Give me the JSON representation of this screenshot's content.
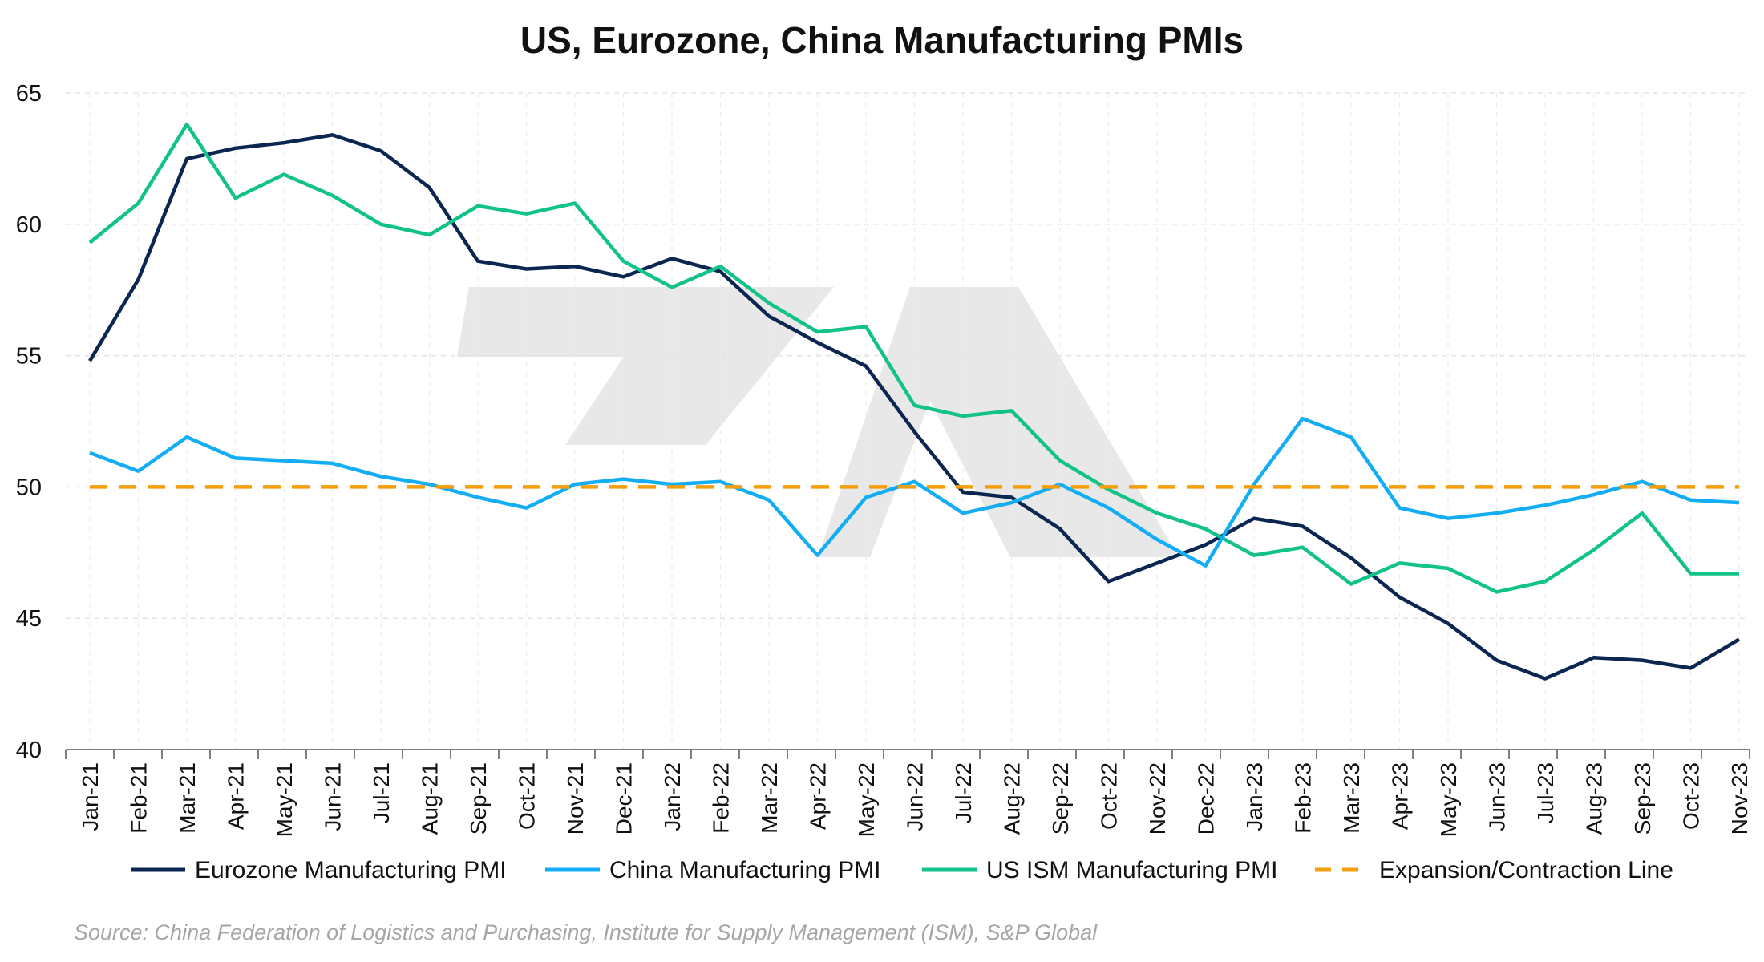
{
  "chart_data": {
    "type": "line",
    "title": "US, Eurozone, China Manufacturing PMIs",
    "xlabel": "",
    "ylabel": "",
    "ylim": [
      40,
      65
    ],
    "yticks": [
      40,
      45,
      50,
      55,
      60,
      65
    ],
    "x": [
      "Jan-21",
      "Feb-21",
      "Mar-21",
      "Apr-21",
      "May-21",
      "Jun-21",
      "Jul-21",
      "Aug-21",
      "Sep-21",
      "Oct-21",
      "Nov-21",
      "Dec-21",
      "Jan-22",
      "Feb-22",
      "Mar-22",
      "Apr-22",
      "May-22",
      "Jun-22",
      "Jul-22",
      "Aug-22",
      "Sep-22",
      "Oct-22",
      "Nov-22",
      "Dec-22",
      "Jan-23",
      "Feb-23",
      "Mar-23",
      "Apr-23",
      "May-23",
      "Jun-23",
      "Jul-23",
      "Aug-23",
      "Sep-23",
      "Oct-23",
      "Nov-23"
    ],
    "grid": true,
    "legend_position": "bottom",
    "series": [
      {
        "name": "Eurozone Manufacturing PMI",
        "color": "#0b2650",
        "style": "solid",
        "values": [
          54.8,
          57.9,
          62.5,
          62.9,
          63.1,
          63.4,
          62.8,
          61.4,
          58.6,
          58.3,
          58.4,
          58.0,
          58.7,
          58.2,
          56.5,
          55.5,
          54.6,
          52.1,
          49.8,
          49.6,
          48.4,
          46.4,
          47.1,
          47.8,
          48.8,
          48.5,
          47.3,
          45.8,
          44.8,
          43.4,
          42.7,
          43.5,
          43.4,
          43.1,
          44.2
        ]
      },
      {
        "name": "China Manufacturing PMI",
        "color": "#12adf5",
        "style": "solid",
        "values": [
          51.3,
          50.6,
          51.9,
          51.1,
          51.0,
          50.9,
          50.4,
          50.1,
          49.6,
          49.2,
          50.1,
          50.3,
          50.1,
          50.2,
          49.5,
          47.4,
          49.6,
          50.2,
          49.0,
          49.4,
          50.1,
          49.2,
          48.0,
          47.0,
          50.1,
          52.6,
          51.9,
          49.2,
          48.8,
          49.0,
          49.3,
          49.7,
          50.2,
          49.5,
          49.4
        ]
      },
      {
        "name": "US ISM Manufacturing PMI",
        "color": "#12c28a",
        "style": "solid",
        "values": [
          59.3,
          60.8,
          63.8,
          61.0,
          61.9,
          61.1,
          60.0,
          59.6,
          60.7,
          60.4,
          60.8,
          58.6,
          57.6,
          58.4,
          57.0,
          55.9,
          56.1,
          53.1,
          52.7,
          52.9,
          51.0,
          49.9,
          49.0,
          48.4,
          47.4,
          47.7,
          46.3,
          47.1,
          46.9,
          46.0,
          46.4,
          47.6,
          49.0,
          46.7,
          46.7
        ]
      },
      {
        "name": "Expansion/Contraction Line",
        "color": "#f59e0b",
        "style": "dashed",
        "values": [
          50,
          50,
          50,
          50,
          50,
          50,
          50,
          50,
          50,
          50,
          50,
          50,
          50,
          50,
          50,
          50,
          50,
          50,
          50,
          50,
          50,
          50,
          50,
          50,
          50,
          50,
          50,
          50,
          50,
          50,
          50,
          50,
          50,
          50,
          50
        ]
      }
    ],
    "source": "Source: China Federation of Logistics and Purchasing, Institute for Supply Management (ISM), S&P Global"
  }
}
